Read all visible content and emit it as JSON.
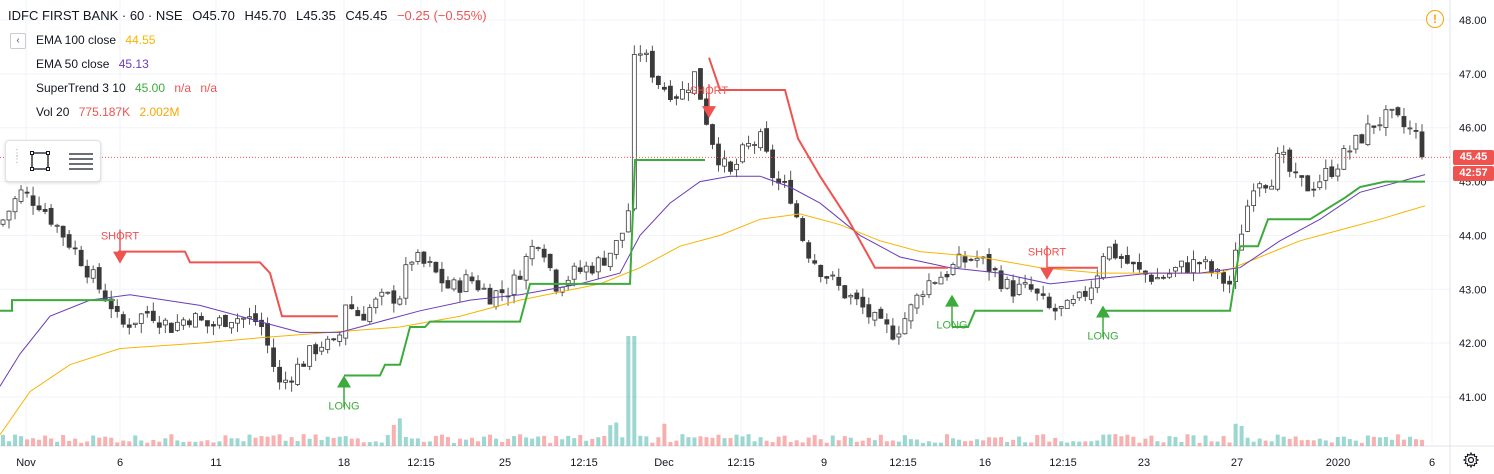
{
  "header": {
    "symbol": "IDFC FIRST BANK · 60 · NSE",
    "open": "O45.70",
    "high": "H45.70",
    "low": "L45.35",
    "close": "C45.45",
    "change": "−0.25 (−0.55%)"
  },
  "indicators": [
    {
      "label": "EMA 100 close",
      "values": [
        "44.55"
      ],
      "color": "#f7b500"
    },
    {
      "label": "EMA 50 close",
      "values": [
        "45.13"
      ],
      "color": "#6a3cb8"
    },
    {
      "label": "SuperTrend 3 10",
      "values": [
        "45.00",
        "n/a",
        "n/a"
      ],
      "colors": [
        "#3bab3b",
        "#ef5350",
        "#ef5350"
      ]
    },
    {
      "label": "Vol 20",
      "values": [
        "775.187K",
        "2.002M"
      ],
      "colors": [
        "#ef5350",
        "#f7a600"
      ]
    }
  ],
  "collapse_label": "‹",
  "price_badges": {
    "last": "45.45",
    "countdown": "42:57"
  },
  "icons": {
    "alert": "alert-circle-icon",
    "settings": "gear-icon",
    "rect": "rectangle-tool-icon",
    "lines": "horizontal-lines-icon"
  },
  "colors": {
    "up": "#26a69a",
    "down": "#ef5350",
    "st_up": "#3bab3b",
    "st_down": "#ef5350",
    "ema50": "#6a3cb8",
    "ema100": "#f7b500"
  },
  "chart_data": {
    "type": "candlestick",
    "title": "IDFC FIRST BANK · 60 · NSE",
    "y_range": [
      40.2,
      48.3
    ],
    "y_ticks": [
      "41.00",
      "42.00",
      "43.00",
      "44.00",
      "45.00",
      "46.00",
      "47.00",
      "48.00"
    ],
    "x_ticks": [
      "Nov",
      "6",
      "11",
      "18",
      "12:15",
      "25",
      "12:15",
      "Dec",
      "12:15",
      "9",
      "12:15",
      "16",
      "12:15",
      "23",
      "27",
      "2020",
      "6"
    ],
    "x_tick_pos": [
      26,
      120,
      216,
      344,
      421,
      505,
      584,
      664,
      741,
      824,
      903,
      985,
      1063,
      1144,
      1237,
      1338,
      1432
    ],
    "close_path": [
      [
        0,
        44.2
      ],
      [
        20,
        44.8
      ],
      [
        40,
        44.6
      ],
      [
        60,
        44.1
      ],
      [
        80,
        43.6
      ],
      [
        100,
        43.0
      ],
      [
        112,
        42.7
      ],
      [
        120,
        42.3
      ],
      [
        130,
        42.4
      ],
      [
        150,
        42.6
      ],
      [
        170,
        42.3
      ],
      [
        190,
        42.5
      ],
      [
        210,
        42.3
      ],
      [
        230,
        42.5
      ],
      [
        260,
        42.4
      ],
      [
        280,
        41.2
      ],
      [
        300,
        41.6
      ],
      [
        320,
        42.0
      ],
      [
        338,
        41.9
      ],
      [
        344,
        42.8
      ],
      [
        360,
        42.5
      ],
      [
        380,
        42.8
      ],
      [
        400,
        42.9
      ],
      [
        410,
        43.6
      ],
      [
        430,
        43.4
      ],
      [
        450,
        43.0
      ],
      [
        470,
        43.2
      ],
      [
        490,
        42.9
      ],
      [
        510,
        43.0
      ],
      [
        530,
        43.7
      ],
      [
        540,
        44.0
      ],
      [
        555,
        43.1
      ],
      [
        575,
        43.3
      ],
      [
        600,
        43.5
      ],
      [
        620,
        43.9
      ],
      [
        630,
        44.6
      ],
      [
        635,
        47.6
      ],
      [
        645,
        47.3
      ],
      [
        660,
        46.8
      ],
      [
        680,
        46.6
      ],
      [
        695,
        47.0
      ],
      [
        710,
        45.9
      ],
      [
        720,
        45.4
      ],
      [
        730,
        45.1
      ],
      [
        745,
        45.6
      ],
      [
        760,
        45.8
      ],
      [
        775,
        45.0
      ],
      [
        790,
        44.8
      ],
      [
        805,
        43.8
      ],
      [
        820,
        43.4
      ],
      [
        840,
        43.0
      ],
      [
        860,
        42.7
      ],
      [
        880,
        42.3
      ],
      [
        895,
        42.2
      ],
      [
        910,
        42.6
      ],
      [
        925,
        43.1
      ],
      [
        945,
        43.3
      ],
      [
        960,
        43.5
      ],
      [
        975,
        43.6
      ],
      [
        990,
        43.4
      ],
      [
        1010,
        43.0
      ],
      [
        1030,
        43.0
      ],
      [
        1050,
        42.6
      ],
      [
        1065,
        42.6
      ],
      [
        1080,
        42.8
      ],
      [
        1095,
        43.2
      ],
      [
        1105,
        43.8
      ],
      [
        1120,
        43.6
      ],
      [
        1140,
        43.3
      ],
      [
        1160,
        43.2
      ],
      [
        1180,
        43.4
      ],
      [
        1200,
        43.5
      ],
      [
        1220,
        43.2
      ],
      [
        1230,
        43.1
      ],
      [
        1240,
        44.0
      ],
      [
        1255,
        45.1
      ],
      [
        1270,
        45.0
      ],
      [
        1280,
        45.5
      ],
      [
        1295,
        45.0
      ],
      [
        1310,
        44.9
      ],
      [
        1330,
        45.2
      ],
      [
        1345,
        45.5
      ],
      [
        1360,
        45.8
      ],
      [
        1375,
        46.1
      ],
      [
        1390,
        46.2
      ],
      [
        1405,
        46.0
      ],
      [
        1415,
        45.9
      ],
      [
        1425,
        45.45
      ]
    ],
    "ema50": [
      [
        0,
        41.2
      ],
      [
        20,
        41.8
      ],
      [
        50,
        42.5
      ],
      [
        90,
        42.8
      ],
      [
        130,
        42.9
      ],
      [
        200,
        42.7
      ],
      [
        260,
        42.4
      ],
      [
        300,
        42.2
      ],
      [
        340,
        42.2
      ],
      [
        380,
        42.4
      ],
      [
        420,
        42.6
      ],
      [
        470,
        42.8
      ],
      [
        520,
        42.9
      ],
      [
        580,
        43.1
      ],
      [
        620,
        43.3
      ],
      [
        640,
        44.0
      ],
      [
        670,
        44.6
      ],
      [
        700,
        45.0
      ],
      [
        730,
        45.1
      ],
      [
        760,
        45.1
      ],
      [
        790,
        44.9
      ],
      [
        820,
        44.6
      ],
      [
        860,
        44.0
      ],
      [
        900,
        43.6
      ],
      [
        950,
        43.4
      ],
      [
        1000,
        43.3
      ],
      [
        1050,
        43.1
      ],
      [
        1100,
        43.2
      ],
      [
        1150,
        43.3
      ],
      [
        1200,
        43.3
      ],
      [
        1240,
        43.4
      ],
      [
        1280,
        43.9
      ],
      [
        1320,
        44.3
      ],
      [
        1360,
        44.8
      ],
      [
        1400,
        45.0
      ],
      [
        1425,
        45.13
      ]
    ],
    "ema100": [
      [
        0,
        40.3
      ],
      [
        30,
        41.1
      ],
      [
        70,
        41.6
      ],
      [
        120,
        41.9
      ],
      [
        200,
        42.0
      ],
      [
        260,
        42.1
      ],
      [
        330,
        42.2
      ],
      [
        400,
        42.3
      ],
      [
        460,
        42.5
      ],
      [
        520,
        42.8
      ],
      [
        600,
        43.1
      ],
      [
        640,
        43.4
      ],
      [
        680,
        43.8
      ],
      [
        720,
        44.0
      ],
      [
        760,
        44.3
      ],
      [
        800,
        44.4
      ],
      [
        840,
        44.2
      ],
      [
        880,
        43.9
      ],
      [
        920,
        43.7
      ],
      [
        980,
        43.6
      ],
      [
        1040,
        43.4
      ],
      [
        1100,
        43.3
      ],
      [
        1160,
        43.3
      ],
      [
        1220,
        43.3
      ],
      [
        1260,
        43.6
      ],
      [
        1300,
        43.9
      ],
      [
        1340,
        44.1
      ],
      [
        1380,
        44.3
      ],
      [
        1425,
        44.55
      ]
    ],
    "supertrend": [
      {
        "dir": "up",
        "pts": [
          [
            0,
            42.6
          ],
          [
            12,
            42.6
          ],
          [
            12,
            42.8
          ],
          [
            115,
            42.8
          ]
        ]
      },
      {
        "dir": "down",
        "pts": [
          [
            118,
            43.7
          ],
          [
            185,
            43.7
          ],
          [
            190,
            43.5
          ],
          [
            260,
            43.5
          ],
          [
            270,
            43.3
          ],
          [
            282,
            42.5
          ],
          [
            338,
            42.5
          ]
        ]
      },
      {
        "dir": "up",
        "pts": [
          [
            344,
            41.4
          ],
          [
            380,
            41.4
          ],
          [
            385,
            41.6
          ],
          [
            400,
            41.6
          ],
          [
            410,
            42.3
          ],
          [
            425,
            42.3
          ],
          [
            430,
            42.4
          ],
          [
            520,
            42.4
          ],
          [
            530,
            43.1
          ],
          [
            630,
            43.1
          ],
          [
            635,
            45.4
          ],
          [
            705,
            45.4
          ]
        ]
      },
      {
        "dir": "down",
        "pts": [
          [
            709,
            47.3
          ],
          [
            720,
            46.7
          ],
          [
            785,
            46.7
          ],
          [
            798,
            45.8
          ],
          [
            820,
            45.1
          ],
          [
            848,
            44.3
          ],
          [
            875,
            43.4
          ],
          [
            948,
            43.4
          ]
        ]
      },
      {
        "dir": "up",
        "pts": [
          [
            952,
            42.3
          ],
          [
            968,
            42.3
          ],
          [
            975,
            42.6
          ],
          [
            1043,
            42.6
          ]
        ]
      },
      {
        "dir": "down",
        "pts": [
          [
            1047,
            43.4
          ],
          [
            1098,
            43.4
          ]
        ]
      },
      {
        "dir": "up",
        "pts": [
          [
            1103,
            42.6
          ],
          [
            1230,
            42.6
          ],
          [
            1240,
            43.8
          ],
          [
            1258,
            43.8
          ],
          [
            1268,
            44.3
          ],
          [
            1310,
            44.3
          ],
          [
            1345,
            44.7
          ],
          [
            1360,
            44.9
          ],
          [
            1385,
            45.0
          ],
          [
            1425,
            45.0
          ]
        ]
      }
    ],
    "signals": [
      {
        "type": "short",
        "label": "SHORT",
        "x": 120,
        "price": 43.7
      },
      {
        "type": "long",
        "label": "LONG",
        "x": 344,
        "price": 41.4
      },
      {
        "type": "short",
        "label": "SHORT",
        "x": 709,
        "price": 46.4
      },
      {
        "type": "long",
        "label": "LONG",
        "x": 952,
        "price": 42.9
      },
      {
        "type": "short",
        "label": "SHORT",
        "x": 1047,
        "price": 43.4
      },
      {
        "type": "long",
        "label": "LONG",
        "x": 1103,
        "price": 42.7
      }
    ],
    "last_price": 45.45,
    "candle_count": 237,
    "volume_spike_x": [
      632,
      664,
      612,
      398,
      1238
    ]
  }
}
